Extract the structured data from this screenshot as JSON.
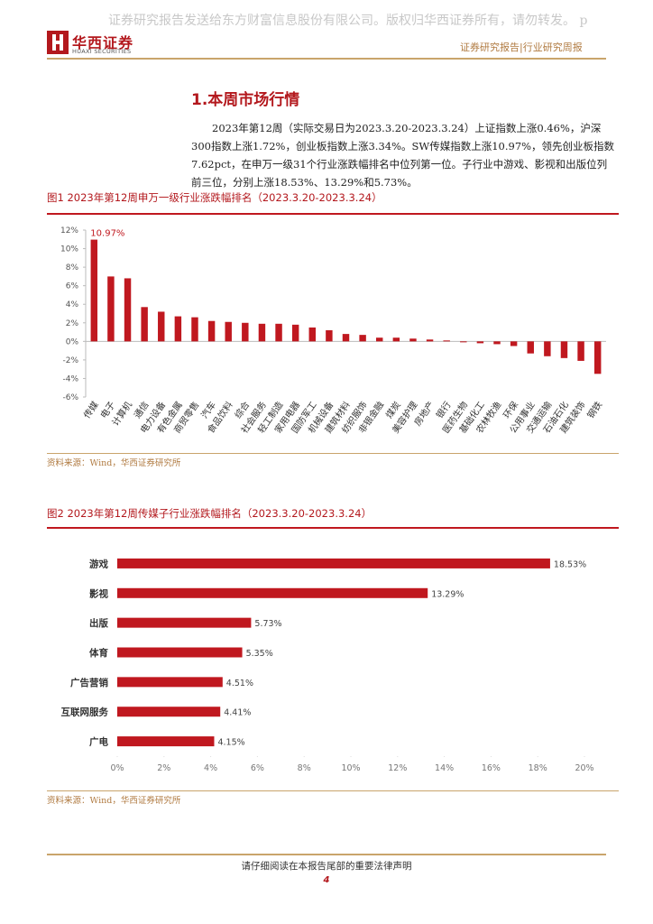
{
  "header": {
    "watermark": "证券研究报告发送给东方财富信息股份有限公司。版权归华西证券所有，请勿转发。 p",
    "logo": "华西证券",
    "logo_en": "HUAXI SECURITIES",
    "report_type": "证券研究报告|行业研究周报"
  },
  "section": {
    "title": "1.本周市场行情",
    "paragraph": "2023年第12周（实际交易日为2023.3.20-2023.3.24）上证指数上涨0.46%，沪深300指数上涨1.72%，创业板指数上涨3.34%。SW传媒指数上涨10.97%，领先创业板指数7.62pct，在申万一级31个行业涨跌幅排名中位列第一位。子行业中游戏、影视和出版位列前三位，分别上涨18.53%、13.29%和5.73%。"
  },
  "chart_data": [
    {
      "type": "bar",
      "title": "图1 2023年第12周申万一级行业涨跌幅排名（2023.3.20-2023.3.24）",
      "source": "资料来源：Wind，华西证券研究所",
      "categories": [
        "传媒",
        "电子",
        "计算机",
        "通信",
        "电力设备",
        "有色金属",
        "商贸零售",
        "汽车",
        "食品饮料",
        "综合",
        "社会服务",
        "轻工制造",
        "家用电器",
        "国防军工",
        "机械设备",
        "建筑材料",
        "纺织服饰",
        "非银金融",
        "煤炭",
        "美容护理",
        "房地产",
        "银行",
        "医药生物",
        "基础化工",
        "农林牧渔",
        "环保",
        "公用事业",
        "交通运输",
        "石油石化",
        "建筑装饰",
        "钢铁"
      ],
      "values": [
        10.97,
        7.0,
        6.8,
        3.7,
        3.2,
        2.7,
        2.6,
        2.2,
        2.1,
        2.0,
        1.9,
        1.9,
        1.8,
        1.5,
        1.2,
        0.8,
        0.7,
        0.4,
        0.4,
        0.3,
        0.2,
        0.1,
        -0.1,
        -0.2,
        -0.3,
        -0.5,
        -1.3,
        -1.6,
        -1.8,
        -2.1,
        -3.5
      ],
      "value_labels": [
        "10.97%",
        null,
        null,
        null,
        null,
        null,
        null,
        null,
        null,
        null,
        null,
        null,
        null,
        null,
        null,
        null,
        null,
        null,
        null,
        null,
        null,
        null,
        null,
        null,
        null,
        null,
        null,
        null,
        null,
        null,
        null
      ],
      "color": "#c0181f",
      "horizontal": false,
      "ylim": [
        -6,
        12
      ],
      "yticks": [
        {
          "value": -6,
          "label": "-6%"
        },
        {
          "value": -4,
          "label": "-4%"
        },
        {
          "value": -2,
          "label": "-2%"
        },
        {
          "value": 0,
          "label": "0%"
        },
        {
          "value": 2,
          "label": "2%"
        },
        {
          "value": 4,
          "label": "4%"
        },
        {
          "value": 6,
          "label": "6%"
        },
        {
          "value": 8,
          "label": "8%"
        },
        {
          "value": 10,
          "label": "10%"
        },
        {
          "value": 12,
          "label": "12%"
        }
      ]
    },
    {
      "type": "bar",
      "title": "图2 2023年第12周传媒子行业涨跌幅排名（2023.3.20-2023.3.24）",
      "source": "资料来源：Wind，华西证券研究所",
      "categories": [
        "游戏",
        "影视",
        "出版",
        "体育",
        "广告营销",
        "互联网服务",
        "广电"
      ],
      "values": [
        18.53,
        13.29,
        5.73,
        5.35,
        4.51,
        4.41,
        4.15
      ],
      "value_labels": [
        "18.53%",
        "13.29%",
        "5.73%",
        "5.35%",
        "4.51%",
        "4.41%",
        "4.15%"
      ],
      "color": "#c0181f",
      "horizontal": true,
      "xlim": [
        0,
        20
      ],
      "xticks": [
        {
          "value": 0,
          "label": "0%"
        },
        {
          "value": 2,
          "label": "2%"
        },
        {
          "value": 4,
          "label": "4%"
        },
        {
          "value": 6,
          "label": "6%"
        },
        {
          "value": 8,
          "label": "8%"
        },
        {
          "value": 10,
          "label": "10%"
        },
        {
          "value": 12,
          "label": "12%"
        },
        {
          "value": 14,
          "label": "14%"
        },
        {
          "value": 16,
          "label": "16%"
        },
        {
          "value": 18,
          "label": "18%"
        },
        {
          "value": 20,
          "label": "20%"
        }
      ]
    }
  ],
  "footer": {
    "notice": "请仔细阅读在本报告尾部的重要法律声明",
    "page": "4"
  }
}
